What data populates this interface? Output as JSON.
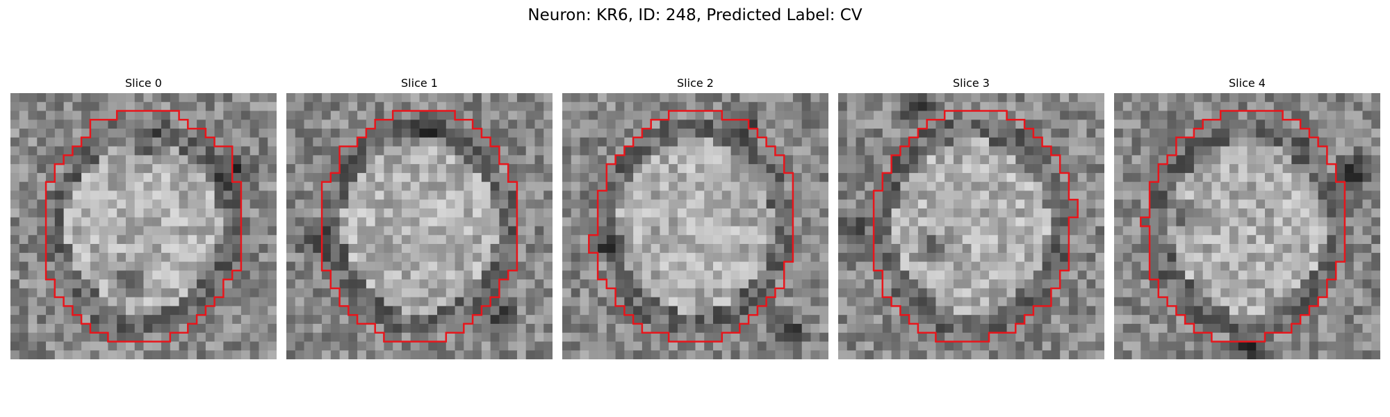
{
  "figure": {
    "title": "Neuron: KR6, ID: 248, Predicted Label: CV"
  },
  "panels": [
    {
      "title": "Slice 0",
      "dark_blobs": [
        [
          0.5,
          0.2
        ],
        [
          0.45,
          0.7
        ],
        [
          0.85,
          0.3
        ]
      ],
      "contour_color": "#e8151b"
    },
    {
      "title": "Slice 1",
      "dark_blobs": [
        [
          0.5,
          0.15
        ],
        [
          0.1,
          0.55
        ],
        [
          0.8,
          0.85
        ]
      ],
      "contour_color": "#e8151b"
    },
    {
      "title": "Slice 2",
      "dark_blobs": [
        [
          0.68,
          0.1
        ],
        [
          0.2,
          0.55
        ],
        [
          0.85,
          0.9
        ]
      ],
      "contour_color": "#e8151b"
    },
    {
      "title": "Slice 3",
      "dark_blobs": [
        [
          0.35,
          0.58
        ],
        [
          0.3,
          0.05
        ],
        [
          0.05,
          0.5
        ]
      ],
      "contour_color": "#e8151b"
    },
    {
      "title": "Slice 4",
      "dark_blobs": [
        [
          0.25,
          0.47
        ],
        [
          0.9,
          0.3
        ],
        [
          0.5,
          0.95
        ]
      ],
      "contour_color": "#e8151b"
    }
  ]
}
